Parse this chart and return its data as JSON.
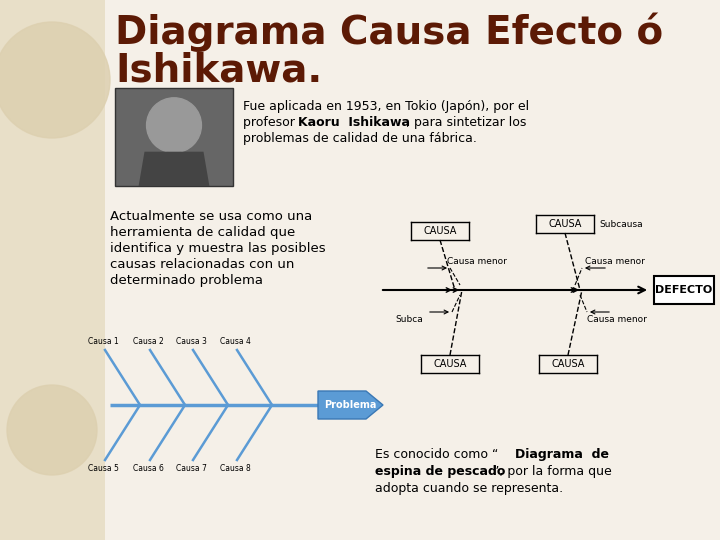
{
  "background_color": "#f5f0e8",
  "left_panel_color": "#e8dfc8",
  "title_line1": "Diagrama Causa Efecto ó",
  "title_line2": "Ishikawa.",
  "title_color": "#5c1a05",
  "title_fontsize": 28,
  "text_color": "#000000",
  "text_fontsize": 9,
  "fish_line_color": "#5b9bd5",
  "fish_spine_color": "#5b9bd5",
  "causa_labels_top": [
    "Causa 1",
    "Causa 2",
    "Causa 3",
    "Causa 4"
  ],
  "causa_labels_bottom": [
    "Causa 5",
    "Causa 6",
    "Causa 7",
    "Causa 8"
  ],
  "problema_label": "Problema",
  "defecto_label": "DEFECTO",
  "causa_label": "CAUSA",
  "subcausa_label": "Subcausa",
  "subca_label": "Subca",
  "causa_menor_label": "Causa menor"
}
